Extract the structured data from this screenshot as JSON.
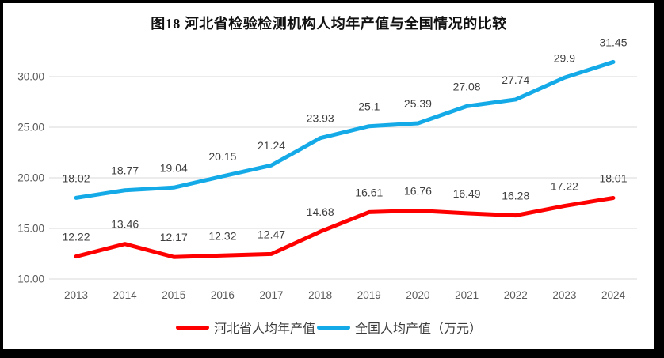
{
  "chart_data": {
    "type": "line",
    "title": "图18 河北省检验检测机构人均年产值与全国情况的比较",
    "categories": [
      "2013",
      "2014",
      "2015",
      "2016",
      "2017",
      "2018",
      "2019",
      "2020",
      "2021",
      "2022",
      "2023",
      "2024"
    ],
    "series": [
      {
        "name": "河北省人均年产值",
        "color": "#FF0000",
        "values": [
          12.22,
          13.46,
          12.17,
          12.32,
          12.47,
          14.68,
          16.61,
          16.76,
          16.49,
          16.28,
          17.22,
          18.01
        ],
        "labels": [
          "12.22",
          "13.46",
          "12.17",
          "12.32",
          "12.47",
          "14.68",
          "16.61",
          "16.76",
          "16.49",
          "16.28",
          "17.22",
          "18.01"
        ]
      },
      {
        "name": "全国人均产值（万元）",
        "color": "#14AAE7",
        "values": [
          18.02,
          18.77,
          19.04,
          20.15,
          21.24,
          23.93,
          25.1,
          25.39,
          27.08,
          27.74,
          29.9,
          31.45
        ],
        "labels": [
          "18.02",
          "18.77",
          "19.04",
          "20.15",
          "21.24",
          "23.93",
          "25.1",
          "25.39",
          "27.08",
          "27.74",
          "29.9",
          "31.45"
        ]
      }
    ],
    "ylim": [
      10,
      30
    ],
    "yticks": [
      {
        "value": 10,
        "label": "10.00"
      },
      {
        "value": 15,
        "label": "15.00"
      },
      {
        "value": 20,
        "label": "20.00"
      },
      {
        "value": 25,
        "label": "25.00"
      },
      {
        "value": 30,
        "label": "30.00"
      }
    ],
    "grid": "horizontal",
    "grid_color": "#D9D9D9",
    "legend_position": "bottom"
  }
}
